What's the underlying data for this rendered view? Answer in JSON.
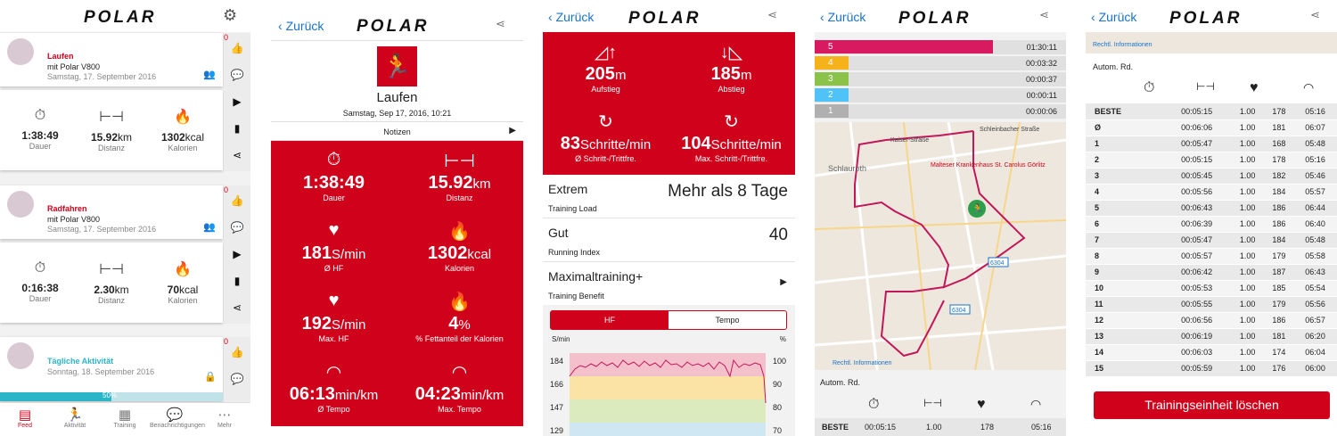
{
  "brand": "POLAR",
  "nav": {
    "back": "Zurück"
  },
  "feed": {
    "activities": [
      {
        "title": "Laufen",
        "title_color": "#d0021b",
        "device": "mit Polar V800",
        "date": "Samstag, 17. September 2016",
        "time": "1:38:49",
        "time_label": "Dauer",
        "dist": "15.92",
        "dist_unit": "km",
        "dist_label": "Distanz",
        "kcal": "1302",
        "kcal_unit": "kcal",
        "kcal_label": "Kalorien",
        "count": "0"
      },
      {
        "title": "Radfahren",
        "title_color": "#d0021b",
        "device": "mit Polar V800",
        "date": "Samstag, 17. September 2016",
        "time": "0:16:38",
        "time_label": "Dauer",
        "dist": "2.30",
        "dist_unit": "km",
        "dist_label": "Distanz",
        "kcal": "70",
        "kcal_unit": "kcal",
        "kcal_label": "Kalorien",
        "count": "0"
      },
      {
        "title": "Tägliche Aktivität",
        "title_color": "#2bb5c8",
        "date": "Sonntag, 18. September 2016",
        "progress": "50%",
        "progress_value": 0.5,
        "count": "0"
      }
    ],
    "tabs": [
      {
        "label": "Feed",
        "icon": "feed-icon",
        "active": true
      },
      {
        "label": "Aktivität",
        "icon": "activity-icon"
      },
      {
        "label": "Training",
        "icon": "training-icon"
      },
      {
        "label": "Benachrichtigungen",
        "icon": "notifications-icon"
      },
      {
        "label": "Mehr",
        "icon": "more-icon"
      }
    ]
  },
  "detail": {
    "sport": "Laufen",
    "datetime": "Samstag, Sep 17, 2016, 10:21",
    "notes": "Notizen",
    "stats": [
      {
        "v": "1:38:49",
        "u": "",
        "l": "Dauer",
        "icon": "stopwatch-icon"
      },
      {
        "v": "15.92",
        "u": "km",
        "l": "Distanz",
        "icon": "distance-icon"
      },
      {
        "v": "181",
        "u": "S/min",
        "l": "Ø HF",
        "icon": "heart-icon"
      },
      {
        "v": "1302",
        "u": "kcal",
        "l": "Kalorien",
        "icon": "flame-icon"
      },
      {
        "v": "192",
        "u": "S/min",
        "l": "Max. HF",
        "icon": "heart-icon"
      },
      {
        "v": "4",
        "u": "%",
        "l": "% Fettanteil der Kalorien",
        "icon": "flame-icon"
      },
      {
        "v": "06:13",
        "u": "min/km",
        "l": "Ø Tempo",
        "icon": "gauge-icon"
      },
      {
        "v": "04:23",
        "u": "min/km",
        "l": "Max. Tempo",
        "icon": "gauge-icon"
      }
    ]
  },
  "detail2": {
    "stats": [
      {
        "v": "205",
        "u": "m",
        "l": "Aufstieg",
        "icon": "ascent-icon"
      },
      {
        "v": "185",
        "u": "m",
        "l": "Abstieg",
        "icon": "descent-icon"
      },
      {
        "v": "83",
        "u": "Schritte/min",
        "l": "Ø Schritt-/Trittfre.",
        "icon": "cadence-icon"
      },
      {
        "v": "104",
        "u": "Schritte/min",
        "l": "Max. Schritt-/Trittfre.",
        "icon": "cadence-icon"
      }
    ],
    "rows": [
      {
        "title": "Extrem",
        "value": "Mehr als 8 Tage",
        "sub": "Training Load"
      },
      {
        "title": "Gut",
        "value": "40",
        "sub": "Running Index"
      },
      {
        "title": "Maximaltraining+",
        "value": "",
        "sub": "Training Benefit"
      }
    ],
    "chart_tabs": [
      "HF",
      "Tempo"
    ],
    "chart_units": {
      "left": "S/min",
      "right": "%"
    },
    "chart_ticks_left": [
      "184",
      "166",
      "147",
      "129"
    ],
    "chart_ticks_right": [
      "100",
      "90",
      "80",
      "70"
    ]
  },
  "map": {
    "zones": [
      {
        "zone": "5",
        "time": "01:30:11",
        "color": "#d81b60",
        "frac": 0.94
      },
      {
        "zone": "4",
        "time": "00:03:32",
        "color": "#f5b21b",
        "frac": 0.04
      },
      {
        "zone": "3",
        "time": "00:00:37",
        "color": "#8bc34a",
        "frac": 0.01
      },
      {
        "zone": "2",
        "time": "00:00:11",
        "color": "#4fc3f7",
        "frac": 0.005
      },
      {
        "zone": "1",
        "time": "00:00:06",
        "color": "#b0b0b0",
        "frac": 0.003
      }
    ],
    "streets": [
      "Kaiser-Straße",
      "Schleinbacher Straße",
      "Karl-Eichler-Straße",
      "Schlauroth",
      "Malteser Krankenhaus St. Carolus Görlitz",
      "Schlauroth-Straße"
    ],
    "road_labels": [
      "6304",
      "6304",
      "3"
    ],
    "markers": [
      "1",
      "2",
      "3",
      "4",
      "6",
      "11",
      "13",
      "14",
      "15"
    ],
    "legal": "Rechtl. Informationen",
    "autorunden": "Autom. Rd.",
    "best_label": "BESTE",
    "best": {
      "time": "00:05:15",
      "dist": "1.00",
      "hr": "178",
      "pace": "05:16"
    }
  },
  "laps": {
    "legal": "Rechtl. Informationen",
    "autorunden": "Autom. Rd.",
    "rows": [
      [
        "BESTE",
        "00:05:15",
        "1.00",
        "178",
        "05:16"
      ],
      [
        "Ø",
        "00:06:06",
        "1.00",
        "181",
        "06:07"
      ],
      [
        "1",
        "00:05:47",
        "1.00",
        "168",
        "05:48"
      ],
      [
        "2",
        "00:05:15",
        "1.00",
        "178",
        "05:16"
      ],
      [
        "3",
        "00:05:45",
        "1.00",
        "182",
        "05:46"
      ],
      [
        "4",
        "00:05:56",
        "1.00",
        "184",
        "05:57"
      ],
      [
        "5",
        "00:06:43",
        "1.00",
        "186",
        "06:44"
      ],
      [
        "6",
        "00:06:39",
        "1.00",
        "186",
        "06:40"
      ],
      [
        "7",
        "00:05:47",
        "1.00",
        "184",
        "05:48"
      ],
      [
        "8",
        "00:05:57",
        "1.00",
        "179",
        "05:58"
      ],
      [
        "9",
        "00:06:42",
        "1.00",
        "187",
        "06:43"
      ],
      [
        "10",
        "00:05:53",
        "1.00",
        "185",
        "05:54"
      ],
      [
        "11",
        "00:05:55",
        "1.00",
        "179",
        "05:56"
      ],
      [
        "12",
        "00:06:56",
        "1.00",
        "186",
        "06:57"
      ],
      [
        "13",
        "00:06:19",
        "1.00",
        "181",
        "06:20"
      ],
      [
        "14",
        "00:06:03",
        "1.00",
        "174",
        "06:04"
      ],
      [
        "15",
        "00:05:59",
        "1.00",
        "176",
        "06:00"
      ]
    ],
    "delete": "Trainingseinheit löschen"
  }
}
